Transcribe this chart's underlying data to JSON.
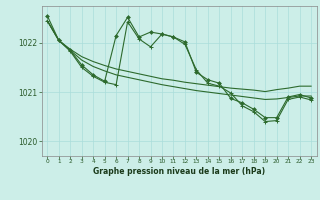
{
  "title": "Graphe pression niveau de la mer (hPa)",
  "background_color": "#cceee8",
  "grid_color": "#aaddda",
  "line_color": "#2d6a2d",
  "xlim": [
    -0.5,
    23.5
  ],
  "ylim": [
    1019.7,
    1022.75
  ],
  "yticks": [
    1020,
    1021,
    1022
  ],
  "xticks": [
    0,
    1,
    2,
    3,
    4,
    5,
    6,
    7,
    8,
    9,
    10,
    11,
    12,
    13,
    14,
    15,
    16,
    17,
    18,
    19,
    20,
    21,
    22,
    23
  ],
  "line1_y": [
    1022.45,
    1022.05,
    1021.87,
    1021.72,
    1021.62,
    1021.54,
    1021.47,
    1021.42,
    1021.37,
    1021.32,
    1021.27,
    1021.24,
    1021.2,
    1021.17,
    1021.14,
    1021.11,
    1021.08,
    1021.06,
    1021.04,
    1021.01,
    1021.05,
    1021.08,
    1021.12,
    1021.12
  ],
  "line2_y": [
    1022.45,
    1022.05,
    1021.85,
    1021.65,
    1021.52,
    1021.43,
    1021.35,
    1021.3,
    1021.25,
    1021.2,
    1021.15,
    1021.11,
    1021.07,
    1021.03,
    1021.0,
    1020.97,
    1020.94,
    1020.91,
    1020.88,
    1020.85,
    1020.86,
    1020.89,
    1020.92,
    1020.92
  ],
  "line3_y": [
    1022.55,
    1022.05,
    1021.85,
    1021.55,
    1021.35,
    1021.22,
    1022.15,
    1022.52,
    1022.12,
    1022.22,
    1022.18,
    1022.12,
    1022.02,
    1021.4,
    1021.25,
    1021.18,
    1020.87,
    1020.78,
    1020.65,
    1020.48,
    1020.48,
    1020.9,
    1020.95,
    1020.88
  ],
  "line4_y": [
    1022.45,
    1022.05,
    1021.83,
    1021.5,
    1021.32,
    1021.2,
    1021.15,
    1022.43,
    1022.08,
    1021.92,
    1022.18,
    1022.12,
    1021.97,
    1021.45,
    1021.18,
    1021.12,
    1020.98,
    1020.72,
    1020.6,
    1020.4,
    1020.42,
    1020.85,
    1020.9,
    1020.84
  ]
}
